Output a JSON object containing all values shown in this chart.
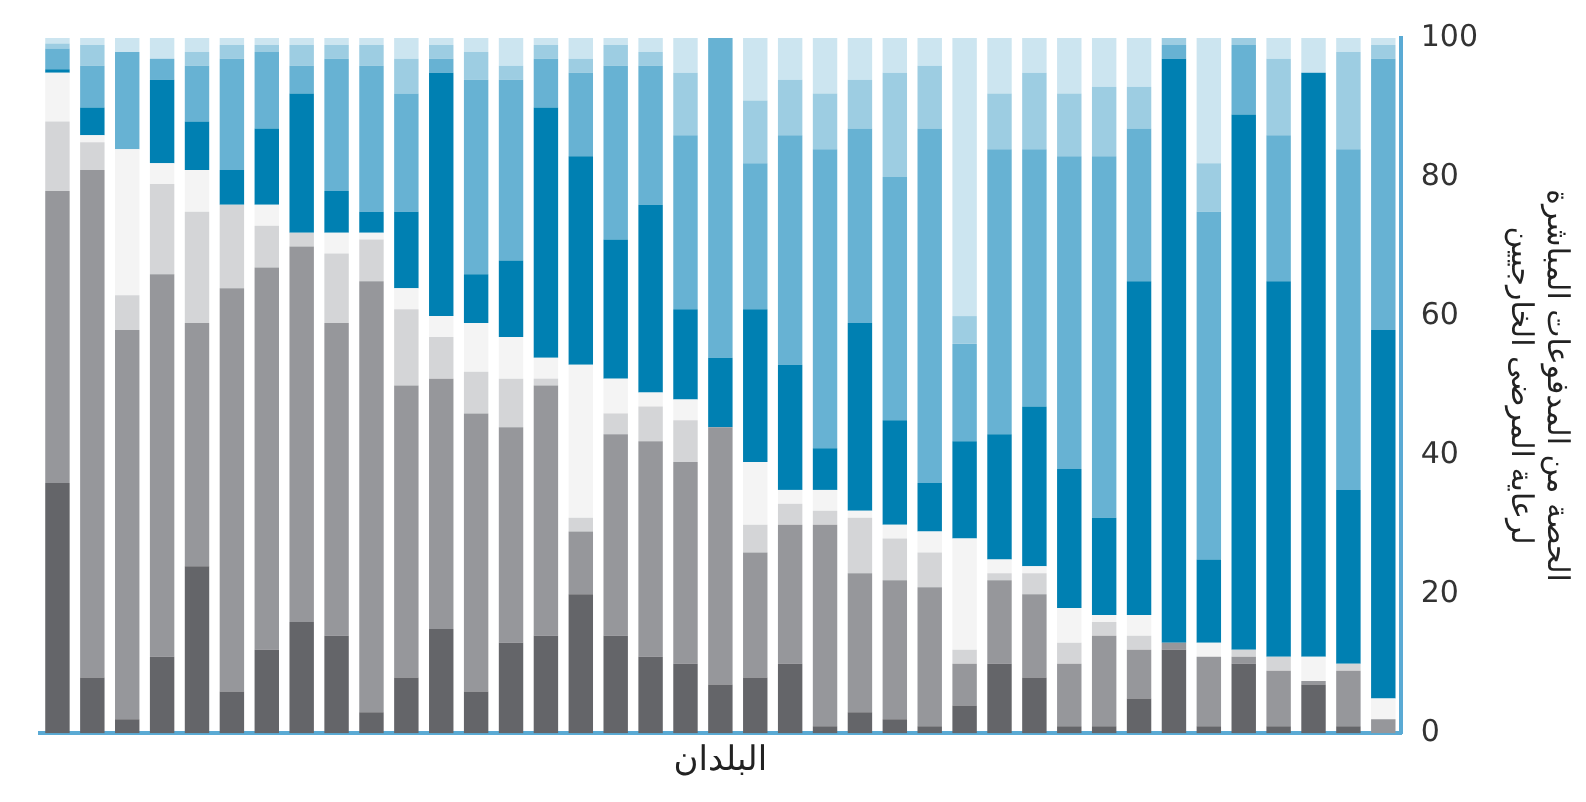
{
  "chart_data": {
    "type": "bar",
    "stacked": true,
    "xlabel": "البلدان",
    "ylabel": "الحصة من المدفوعات المباشرة لرعاية المرضى الخارجيين",
    "categories": [
      null,
      null,
      null,
      null,
      null,
      null,
      null,
      null,
      null,
      null,
      null,
      null,
      null,
      null,
      null,
      null,
      null,
      null,
      null,
      null,
      null,
      null,
      null,
      null,
      null,
      null,
      null,
      null,
      null,
      null,
      null,
      null,
      null,
      null,
      null,
      null,
      null,
      null,
      null
    ],
    "ylim": [
      0,
      100
    ],
    "yticks": [
      0,
      20,
      40,
      60,
      80,
      100
    ],
    "grid": false,
    "legend": false,
    "tick_labels": "y",
    "series": [
      {
        "color": "#646569",
        "values": [
          36,
          8,
          2,
          11,
          24,
          6,
          12,
          16,
          14,
          3,
          8,
          15,
          6,
          13,
          14,
          20,
          14,
          11,
          10,
          7,
          8,
          10,
          1,
          3,
          2,
          1,
          4,
          10,
          8,
          1,
          1,
          5,
          12,
          1,
          10,
          1,
          7,
          1,
          0
        ]
      },
      {
        "color": "#96979b",
        "values": [
          42,
          73,
          56,
          55,
          35,
          58,
          55,
          54,
          45,
          62,
          42,
          36,
          40,
          31,
          36,
          9,
          29,
          31,
          29,
          37,
          18,
          20,
          29,
          20,
          20,
          20,
          6,
          12,
          12,
          9,
          13,
          7,
          1,
          10,
          1,
          8,
          0.5,
          8,
          2
        ]
      },
      {
        "color": "#d4d5d7",
        "values": [
          10,
          4,
          5,
          13,
          16,
          12,
          6,
          2,
          10,
          6,
          11,
          6,
          6,
          7,
          1,
          2,
          3,
          5,
          6,
          0,
          4,
          3,
          2,
          8,
          6,
          5,
          2,
          1,
          3,
          3,
          2,
          2,
          0,
          0,
          1,
          2,
          0,
          1,
          0
        ]
      },
      {
        "color": "#f4f4f4",
        "values": [
          7,
          1,
          21,
          3,
          6,
          0,
          3,
          0,
          3,
          1,
          3,
          3,
          7,
          6,
          3,
          22,
          5,
          2,
          3,
          0,
          9,
          2,
          3,
          1,
          2,
          3,
          16,
          2,
          1,
          5,
          1,
          3,
          0,
          2,
          0,
          0,
          3.5,
          0,
          3
        ]
      },
      {
        "color": "#0080b2",
        "values": [
          0.5,
          4,
          0,
          12,
          7,
          5,
          11,
          20,
          6,
          3,
          11,
          35,
          7,
          11,
          36,
          30,
          20,
          27,
          13,
          10,
          22,
          18,
          6,
          27,
          15,
          7,
          14,
          18,
          23,
          20,
          14,
          48,
          84,
          12,
          77,
          54,
          84,
          25,
          53
        ]
      },
      {
        "color": "#67b2d3",
        "values": [
          3,
          6,
          14,
          3,
          8,
          16,
          11,
          4,
          19,
          21,
          17,
          2,
          28,
          26,
          7,
          12,
          25,
          20,
          25,
          46,
          21,
          33,
          43,
          28,
          35,
          51,
          14,
          41,
          37,
          45,
          52,
          22,
          2,
          50,
          10,
          21,
          0,
          49,
          39
        ]
      },
      {
        "color": "#9dcde2",
        "values": [
          0.7,
          3,
          0,
          0,
          2,
          2,
          1,
          3,
          2,
          3,
          5,
          2,
          4,
          2,
          2,
          2,
          3,
          2,
          9,
          0,
          9,
          8,
          8,
          7,
          15,
          9,
          4,
          8,
          11,
          9,
          10,
          6,
          1,
          7,
          1,
          11,
          0,
          14,
          2
        ]
      },
      {
        "color": "#cce5f0",
        "values": [
          0.8,
          1,
          2,
          3,
          2,
          1,
          1,
          1,
          1,
          1,
          3,
          1,
          2,
          4,
          1,
          3,
          1,
          2,
          5,
          0,
          9,
          6,
          8,
          6,
          5,
          4,
          40,
          8,
          5,
          8,
          7,
          7,
          0,
          18,
          0,
          3,
          5,
          2,
          1
        ]
      }
    ]
  }
}
